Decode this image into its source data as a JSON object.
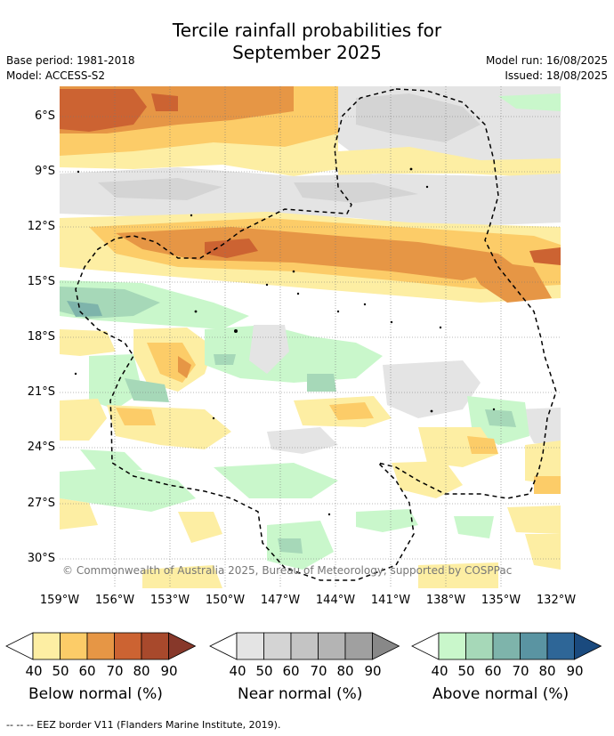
{
  "header": {
    "title_line1": "Tercile rainfall probabilities for",
    "title_line2": "September 2025",
    "base_period": "Base period: 1981-2018",
    "model": "Model: ACCESS-S2",
    "model_run": "Model run: 16/08/2025",
    "issued": "Issued: 18/08/2025"
  },
  "map": {
    "lat_labels": [
      "6°S",
      "9°S",
      "12°S",
      "15°S",
      "18°S",
      "21°S",
      "24°S",
      "27°S",
      "30°S"
    ],
    "lon_labels": [
      "159°W",
      "156°W",
      "153°W",
      "150°W",
      "147°W",
      "144°W",
      "141°W",
      "138°W",
      "135°W",
      "132°W"
    ],
    "credit": "© Commonwealth of Australia 2025, Bureau of Meteorology, supported by COSPPac",
    "gridlines": true,
    "colors": {
      "below_40": "#fdeea3",
      "below_50": "#fccc68",
      "below_60": "#e69645",
      "below_70": "#cc6332",
      "below_80": "#a8492c",
      "near_40": "#e4e4e4",
      "near_50": "#d4d4d4",
      "above_40": "#c9f7cb",
      "above_50": "#a6d8b8",
      "above_60": "#7eb4ab"
    }
  },
  "legends": [
    {
      "name": "below",
      "title": "Below normal (%)",
      "ticks": [
        "40",
        "50",
        "60",
        "70",
        "80",
        "90"
      ],
      "colors": [
        "#ffffff",
        "#fdeea3",
        "#fccc68",
        "#e69645",
        "#cc6332",
        "#a8492c",
        "#87382a"
      ]
    },
    {
      "name": "near",
      "title": "Near normal (%)",
      "ticks": [
        "40",
        "50",
        "60",
        "70",
        "80",
        "90"
      ],
      "colors": [
        "#ffffff",
        "#e4e4e4",
        "#d4d4d4",
        "#c4c4c4",
        "#b4b4b4",
        "#a0a0a0",
        "#888888"
      ]
    },
    {
      "name": "above",
      "title": "Above normal (%)",
      "ticks": [
        "40",
        "50",
        "60",
        "70",
        "80",
        "90"
      ],
      "colors": [
        "#ffffff",
        "#c9f7cb",
        "#a6d8b8",
        "#7eb4ab",
        "#5a94a2",
        "#2e6697",
        "#1a4a7e"
      ]
    }
  ],
  "footnote": "-- -- -- EEZ border V11 (Flanders Marine Institute, 2019)."
}
